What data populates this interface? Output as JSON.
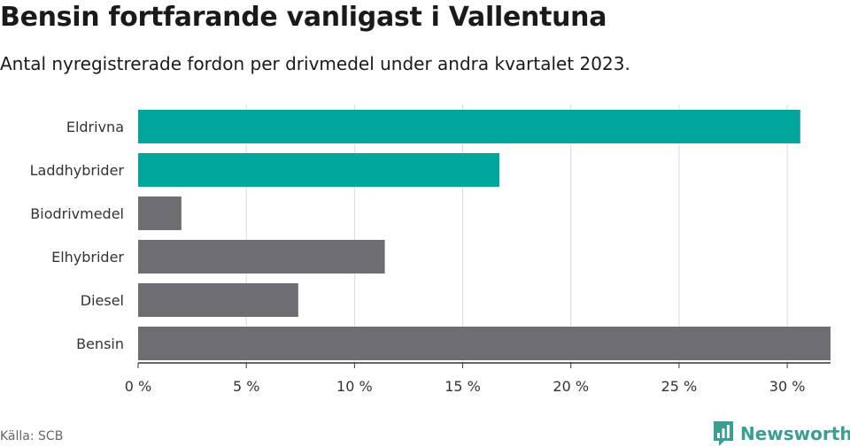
{
  "header": {
    "title": "Bensin fortfarande vanligast i Vallentuna",
    "subtitle": "Antal nyregistrerade fordon per drivmedel under andra kvartalet 2023."
  },
  "footer": {
    "source": "Källa: SCB",
    "brand": "Newsworthy",
    "brand_icon": "newsworthy-logo-icon"
  },
  "colors": {
    "highlight": "#00a59b",
    "default": "#6d6d72",
    "grid": "#d9d9d9",
    "axis": "#333333",
    "brand": "#3a9e93"
  },
  "chart_data": {
    "type": "bar",
    "orientation": "horizontal",
    "categories": [
      "Eldrivna",
      "Laddhybrider",
      "Biodrivmedel",
      "Elhybrider",
      "Diesel",
      "Bensin"
    ],
    "values": [
      30.6,
      16.7,
      2.0,
      11.4,
      7.4,
      32.0
    ],
    "highlighted": [
      "Eldrivna",
      "Laddhybrider"
    ],
    "xlim": [
      0,
      32
    ],
    "xticks": [
      0,
      5,
      10,
      15,
      20,
      25,
      30
    ],
    "xtick_labels": [
      "0 %",
      "5 %",
      "10 %",
      "15 %",
      "20 %",
      "25 %",
      "30 %"
    ],
    "grid": true
  }
}
